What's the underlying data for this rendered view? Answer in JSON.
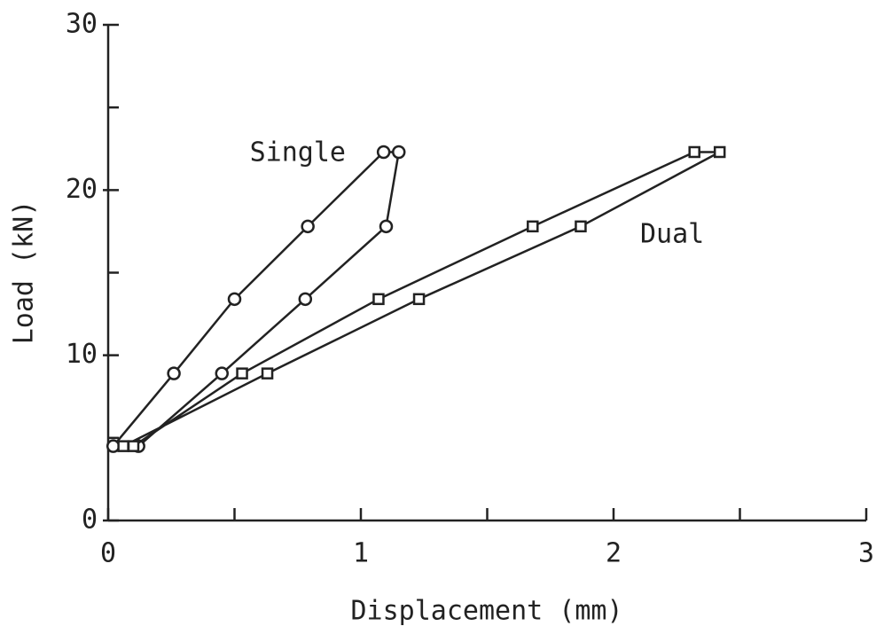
{
  "chart_data": {
    "type": "line",
    "xlabel": "Displacement (mm)",
    "ylabel": "Load (kN)",
    "xlim": [
      0,
      3
    ],
    "xticks": [
      0,
      1,
      2,
      3
    ],
    "xminorticks": [
      0.5,
      1.5,
      2.5
    ],
    "ylim": [
      0,
      30
    ],
    "yticks": [
      0,
      10,
      20,
      30
    ],
    "yminorticks": [
      5,
      15,
      25
    ],
    "series": [
      {
        "name": "Single",
        "color": "#222222",
        "marker": "circle",
        "x": [
          0.02,
          0.26,
          0.5,
          0.79,
          1.09,
          1.15,
          1.1,
          0.78,
          0.45,
          0.12
        ],
        "values": [
          4.5,
          8.9,
          13.4,
          17.8,
          22.3,
          22.3,
          17.8,
          13.4,
          8.9,
          4.5
        ]
      },
      {
        "name": "Dual",
        "color": "#222222",
        "marker": "square",
        "x": [
          0.06,
          0.63,
          1.23,
          1.87,
          2.42,
          2.32,
          1.68,
          1.07,
          0.53,
          0.1
        ],
        "values": [
          4.5,
          8.9,
          13.4,
          17.8,
          22.3,
          22.3,
          17.8,
          13.4,
          8.9,
          4.5
        ]
      }
    ]
  }
}
